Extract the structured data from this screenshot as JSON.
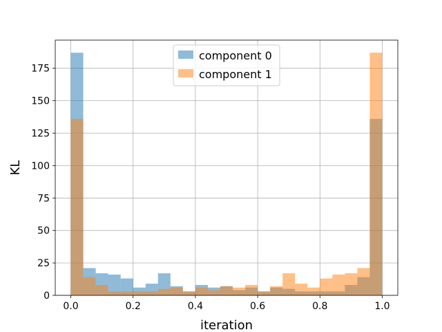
{
  "chart_data": {
    "type": "bar",
    "title": "",
    "xlabel": "iteration",
    "ylabel": "KL",
    "xlim": [
      -0.05,
      1.05
    ],
    "ylim": [
      0,
      196.7
    ],
    "xticks": [
      0.0,
      0.2,
      0.4,
      0.6,
      0.8,
      1.0
    ],
    "xtick_labels": [
      "0.0",
      "0.2",
      "0.4",
      "0.6",
      "0.8",
      "1.0"
    ],
    "yticks": [
      0,
      25,
      50,
      75,
      100,
      125,
      150,
      175
    ],
    "ytick_labels": [
      "0",
      "25",
      "50",
      "75",
      "100",
      "125",
      "150",
      "175"
    ],
    "grid": true,
    "legend_position": "upper center",
    "bin_edges": [
      0.0,
      0.04,
      0.08,
      0.12,
      0.16,
      0.2,
      0.24,
      0.28,
      0.32,
      0.36,
      0.4,
      0.44,
      0.48,
      0.52,
      0.56,
      0.6,
      0.64,
      0.68,
      0.72,
      0.76,
      0.8,
      0.84,
      0.88,
      0.92,
      0.96,
      1.0
    ],
    "series": [
      {
        "name": "component 0",
        "color": "#1f77b4",
        "opacity": 0.5,
        "values": [
          187,
          21,
          17,
          16,
          13,
          6,
          9,
          17,
          7,
          3,
          8,
          6,
          7,
          4,
          6,
          3,
          6,
          5,
          3,
          3,
          3,
          3,
          8,
          14,
          136
        ]
      },
      {
        "name": "component 1",
        "color": "#ff7f0e",
        "opacity": 0.5,
        "values": [
          136,
          14,
          8,
          3,
          3,
          3,
          3,
          5,
          6,
          3,
          6,
          4,
          7,
          6,
          8,
          3,
          7,
          17,
          9,
          6,
          13,
          16,
          17,
          21,
          187
        ]
      }
    ]
  }
}
